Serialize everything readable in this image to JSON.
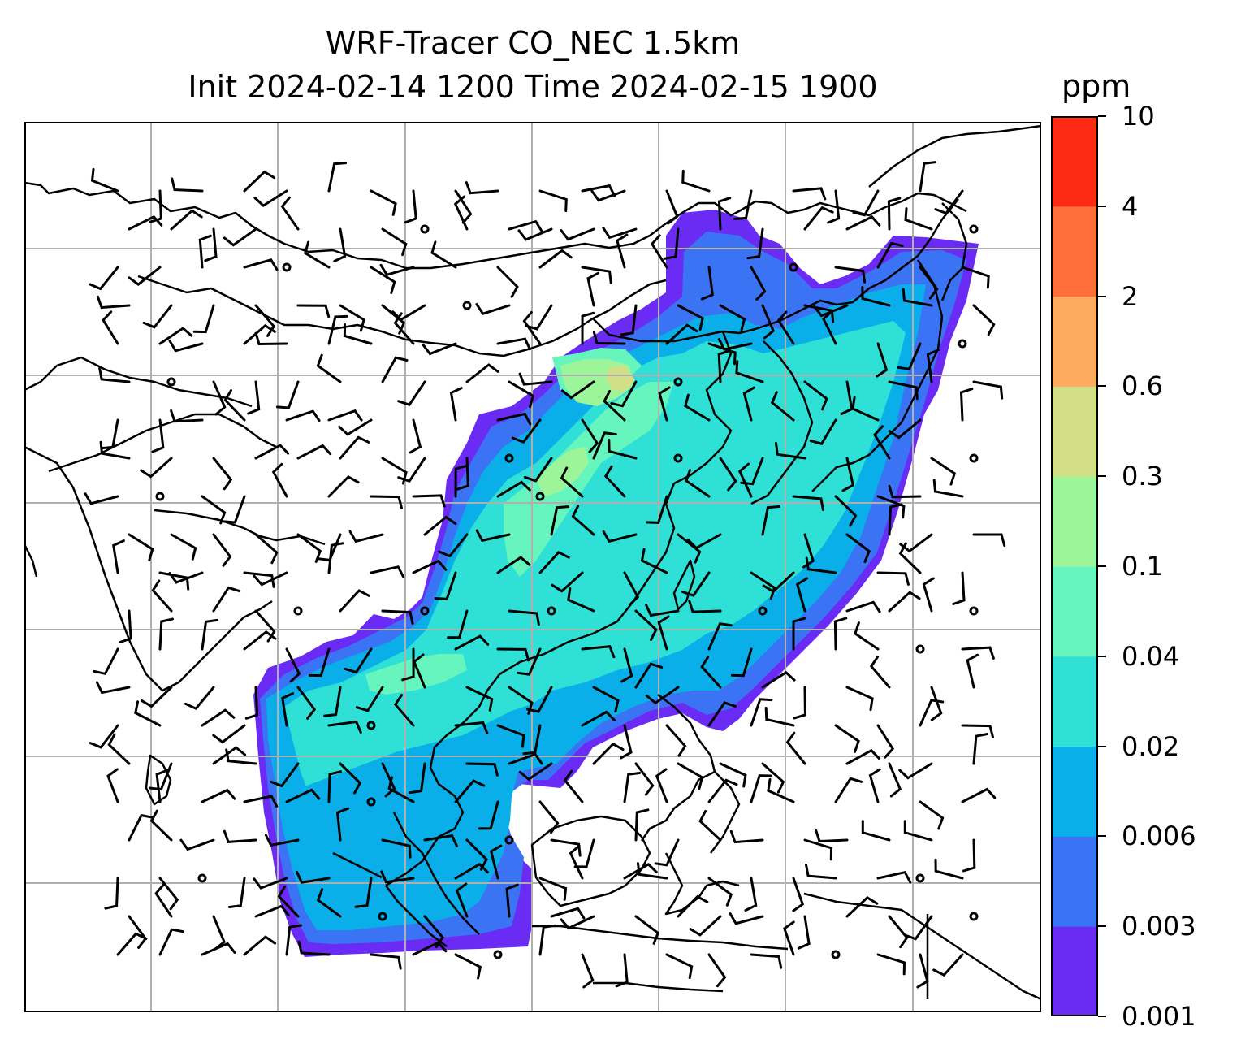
{
  "title": {
    "line1": "WRF-Tracer CO_NEC 1.5km",
    "line2": "Init 2024-02-14 1200 Time 2024-02-15 1900"
  },
  "colorbar": {
    "unit": "ppm",
    "levels": [
      "0.001",
      "0.003",
      "0.006",
      "0.02",
      "0.04",
      "0.1",
      "0.3",
      "0.6",
      "2",
      "4",
      "10"
    ],
    "colors": [
      "#6a2bf5",
      "#3a74f5",
      "#0aaee8",
      "#2ee0d6",
      "#66f5bd",
      "#9df59a",
      "#d2df86",
      "#fcab5f",
      "#fd6e3a",
      "#ff2a14"
    ]
  },
  "map": {
    "grid": "on",
    "coastline_color": "#000000",
    "grid_color": "#b0b0b0",
    "wind_barbs": "on"
  }
}
